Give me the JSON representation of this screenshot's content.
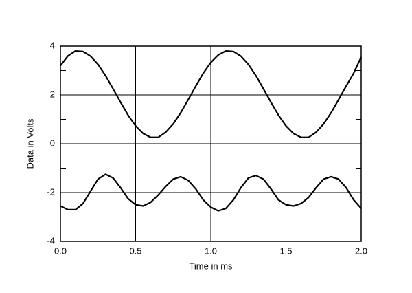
{
  "chart_data": {
    "type": "line",
    "xlabel": "Time in ms",
    "ylabel": "Data in Volts",
    "x": [
      0,
      0.05,
      0.1,
      0.15,
      0.2,
      0.25,
      0.3,
      0.35,
      0.4,
      0.45,
      0.5,
      0.55,
      0.6,
      0.65,
      0.7,
      0.75,
      0.8,
      0.85,
      0.9,
      0.95,
      1.0,
      1.05,
      1.1,
      1.15,
      1.2,
      1.25,
      1.3,
      1.35,
      1.4,
      1.45,
      1.5,
      1.55,
      1.6,
      1.65,
      1.7,
      1.75,
      1.8,
      1.85,
      1.9,
      1.95,
      2.0
    ],
    "series": [
      {
        "color": "#000000",
        "values": [
          3.2,
          3.6,
          3.8,
          3.78,
          3.59,
          3.25,
          2.79,
          2.25,
          1.7,
          1.17,
          0.73,
          0.42,
          0.26,
          0.26,
          0.47,
          0.81,
          1.27,
          1.81,
          2.36,
          2.89,
          3.33,
          3.64,
          3.8,
          3.78,
          3.59,
          3.25,
          2.79,
          2.25,
          1.7,
          1.17,
          0.73,
          0.42,
          0.26,
          0.26,
          0.47,
          0.81,
          1.27,
          1.81,
          2.36,
          2.89,
          3.55
        ]
      },
      {
        "color": "#000000",
        "values": [
          -2.55,
          -2.7,
          -2.7,
          -2.45,
          -1.95,
          -1.45,
          -1.25,
          -1.4,
          -1.8,
          -2.25,
          -2.5,
          -2.55,
          -2.4,
          -2.1,
          -1.75,
          -1.45,
          -1.35,
          -1.5,
          -1.85,
          -2.3,
          -2.6,
          -2.75,
          -2.65,
          -2.3,
          -1.8,
          -1.4,
          -1.3,
          -1.45,
          -1.85,
          -2.3,
          -2.5,
          -2.55,
          -2.45,
          -2.2,
          -1.8,
          -1.45,
          -1.35,
          -1.45,
          -1.8,
          -2.3,
          -2.65
        ]
      }
    ],
    "xlim": [
      0,
      2
    ],
    "ylim": [
      -4,
      4
    ],
    "xticks": [
      {
        "value": 0,
        "label": "0.0"
      },
      0.5,
      {
        "value": 1,
        "label": "1.0"
      },
      1.5,
      {
        "value": 2,
        "label": "2.0"
      }
    ],
    "yticks": [
      -4,
      -2,
      0,
      2,
      4
    ],
    "yminorticks": [
      -3,
      -1,
      1,
      3
    ],
    "grid": true
  }
}
